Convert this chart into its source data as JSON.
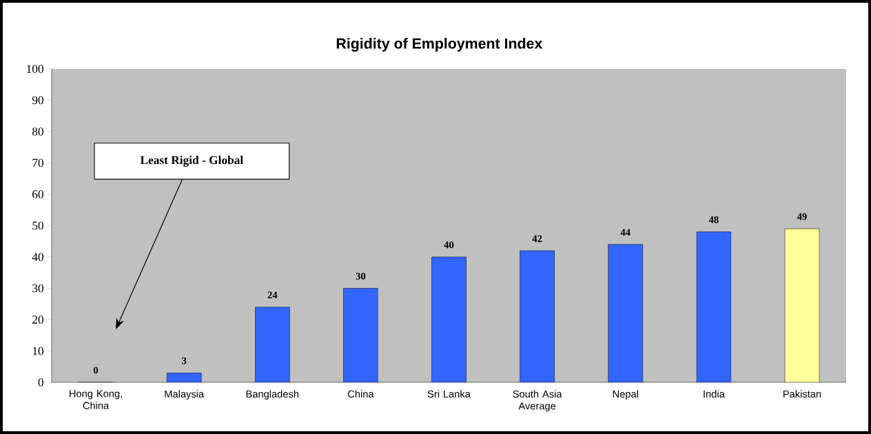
{
  "chart_data": {
    "type": "bar",
    "title": "Rigidity of Employment Index",
    "categories": [
      "Hong Kong, China",
      "Malaysia",
      "Bangladesh",
      "China",
      "Sri Lanka",
      "South Asia Average",
      "Nepal",
      "India",
      "Pakistan"
    ],
    "values": [
      0,
      3,
      24,
      30,
      40,
      42,
      44,
      48,
      49
    ],
    "colors": [
      "#3366ff",
      "#3366ff",
      "#3366ff",
      "#3366ff",
      "#3366ff",
      "#3366ff",
      "#3366ff",
      "#3366ff",
      "#ffff99"
    ],
    "ylim": [
      0,
      100
    ],
    "yticks": [
      0,
      10,
      20,
      30,
      40,
      50,
      60,
      70,
      80,
      90,
      100
    ],
    "data_labels": true,
    "annotations": [
      "Least Rigid - Global"
    ]
  }
}
